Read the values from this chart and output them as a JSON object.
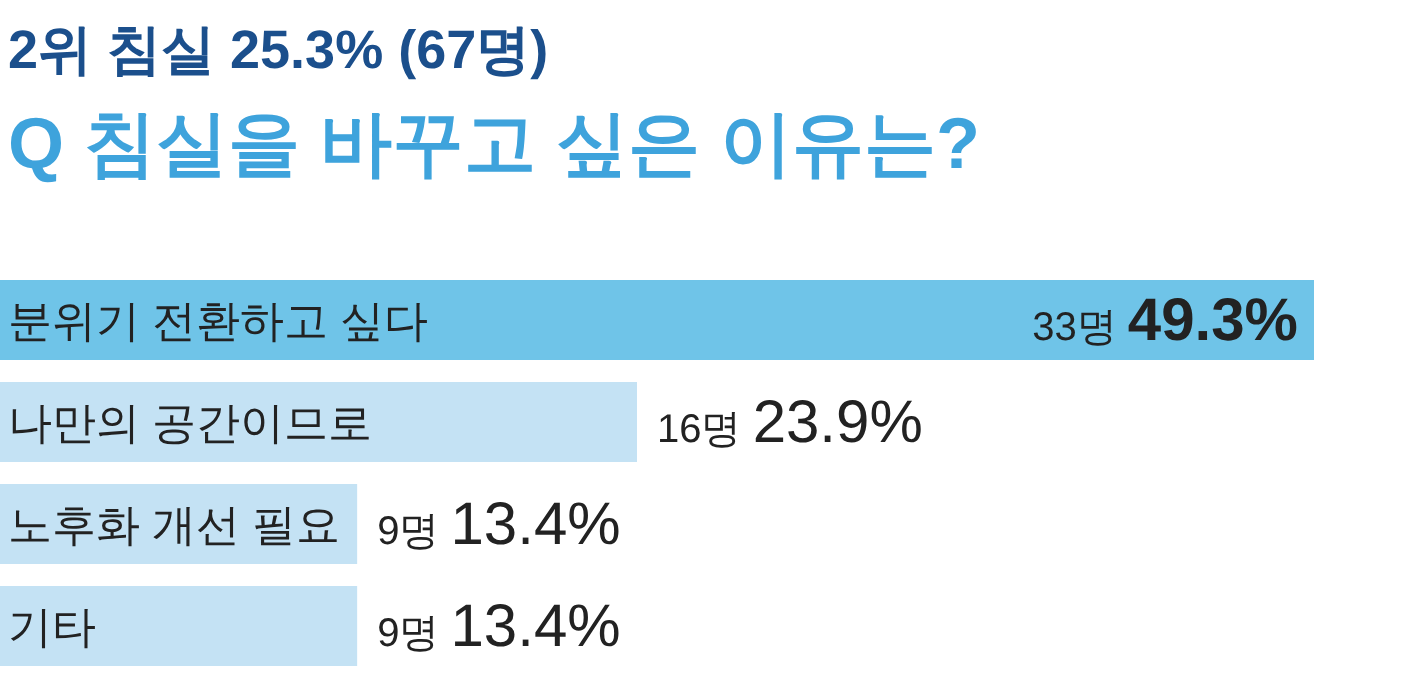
{
  "chart_data": {
    "type": "bar",
    "orientation": "horizontal",
    "title": "2위 침실 25.3% (67명)",
    "subtitle": "Q 침실을 바꾸고 싶은 이유는?",
    "categories": [
      "분위기 전환하고 싶다",
      "나만의 공간이므로",
      "노후화 개선 필요",
      "기타"
    ],
    "values": [
      49.3,
      23.9,
      13.4,
      13.4
    ],
    "colors": [
      "#6fc4e8",
      "#c4e2f4",
      "#c4e2f4",
      "#c4e2f4"
    ],
    "value_labels": [
      "33명 49.3%",
      "16명 23.9%",
      "9명 13.4%",
      "9명 13.4%"
    ]
  }
}
